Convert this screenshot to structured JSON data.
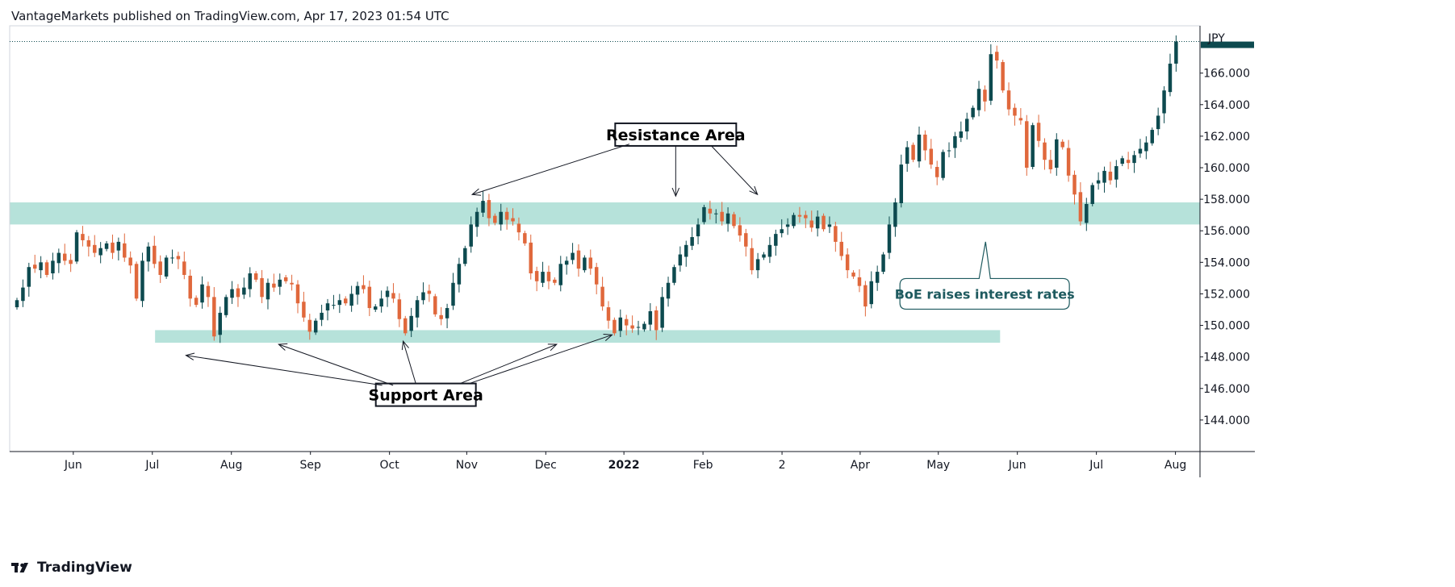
{
  "header": {
    "publisher_line": "VantageMarkets published on TradingView.com, Apr 17, 2023 01:54 UTC"
  },
  "footer": {
    "brand": "TradingView"
  },
  "colors": {
    "up": "#0d4a4f",
    "down": "#e0683c",
    "zone": "#a9ddd3",
    "grid": "#e6e6e6",
    "axis": "#131722",
    "price_line": "#0d4a4f"
  },
  "chart_data": {
    "type": "candlestick",
    "title": "",
    "currency_label": "JPY",
    "ylim": [
      142.0,
      169.0
    ],
    "y_ticks": [
      "166.000",
      "164.000",
      "162.000",
      "160.000",
      "158.000",
      "156.000",
      "154.000",
      "152.000",
      "150.000",
      "148.000",
      "146.000",
      "144.000"
    ],
    "x_ticks": [
      {
        "label": "Jun",
        "t": 0.0
      },
      {
        "label": "Jul",
        "t": 8.7
      },
      {
        "label": "Aug",
        "t": 17.4
      },
      {
        "label": "Sep",
        "t": 26.1
      },
      {
        "label": "Oct",
        "t": 34.8
      },
      {
        "label": "Nov",
        "t": 43.3
      },
      {
        "label": "Dec",
        "t": 52.0
      },
      {
        "label": "2022",
        "t": 60.6,
        "bold": true
      },
      {
        "label": "Feb",
        "t": 69.3
      },
      {
        "label": "2",
        "t": 78.0
      },
      {
        "label": "Apr",
        "t": 86.6
      },
      {
        "label": "May",
        "t": 95.2
      },
      {
        "label": "Jun",
        "t": 103.9
      },
      {
        "label": "Jul",
        "t": 112.6
      },
      {
        "label": "Aug",
        "t": 121.3
      }
    ],
    "x_range": [
      -7,
      124
    ],
    "last_price": 168.0,
    "series_closes": [
      151.6,
      152.4,
      153.7,
      153.6,
      154.0,
      153.2,
      154.1,
      154.6,
      154.1,
      153.9,
      155.9,
      155.4,
      155.0,
      154.6,
      154.9,
      155.2,
      154.6,
      155.3,
      154.3,
      153.8,
      151.7,
      154.1,
      155.0,
      153.9,
      153.2,
      154.3,
      154.3,
      154.2,
      153.2,
      151.7,
      151.3,
      152.6,
      151.8,
      149.3,
      150.8,
      151.8,
      152.3,
      151.8,
      152.4,
      153.3,
      152.9,
      151.8,
      152.7,
      152.4,
      152.9,
      152.8,
      152.6,
      151.4,
      150.5,
      149.6,
      150.3,
      150.8,
      151.4,
      151.3,
      151.6,
      151.4,
      152.0,
      152.5,
      152.3,
      151.1,
      151.2,
      151.7,
      152.2,
      151.7,
      150.4,
      149.5,
      150.6,
      151.6,
      152.1,
      152.0,
      150.7,
      150.4,
      151.1,
      152.7,
      153.9,
      154.9,
      156.4,
      157.2,
      157.9,
      156.8,
      156.5,
      157.2,
      156.7,
      156.6,
      155.9,
      155.2,
      153.3,
      152.8,
      153.4,
      152.8,
      152.7,
      153.9,
      154.1,
      154.6,
      153.6,
      154.3,
      153.6,
      152.6,
      151.2,
      150.3,
      149.5,
      150.5,
      150.0,
      149.8,
      149.9,
      150.1,
      150.9,
      149.7,
      151.8,
      152.7,
      153.7,
      154.5,
      155.1,
      155.6,
      156.4,
      157.5,
      157.1,
      157.1,
      156.6,
      157.1,
      156.3,
      155.7,
      155.0,
      153.5,
      154.2,
      154.5,
      155.1,
      155.8,
      156.1,
      156.4,
      157.0,
      156.9,
      156.8,
      156.2,
      156.9,
      156.1,
      156.4,
      155.3,
      154.4,
      153.5,
      153.1,
      152.5,
      151.2,
      152.8,
      153.4,
      154.5,
      156.4,
      157.8,
      160.2,
      161.3,
      160.5,
      162.1,
      161.1,
      160.2,
      159.4,
      161.0,
      161.1,
      162.0,
      162.3,
      163.1,
      163.8,
      165.0,
      164.2,
      167.2,
      166.8,
      164.9,
      163.7,
      163.3,
      163.0,
      160.0,
      162.7,
      161.7,
      160.5,
      159.9,
      161.8,
      161.3,
      159.5,
      158.3,
      156.6,
      157.7,
      158.9,
      159.2,
      159.8,
      159.2,
      160.1,
      160.6,
      160.3,
      160.8,
      161.2,
      161.6,
      162.4,
      163.3,
      164.9,
      166.6,
      168.0
    ],
    "zones": [
      {
        "name": "resistance",
        "y_low": 156.4,
        "y_high": 157.8,
        "t_start": -7,
        "t_end": 124
      },
      {
        "name": "support",
        "y_low": 148.9,
        "y_high": 149.7,
        "t_start": 9.0,
        "t_end": 102.0
      }
    ],
    "annotations": {
      "resistance_label": "Resistance Area",
      "support_label": "Support Area",
      "boe_label": "BoE raises interest rates"
    }
  }
}
